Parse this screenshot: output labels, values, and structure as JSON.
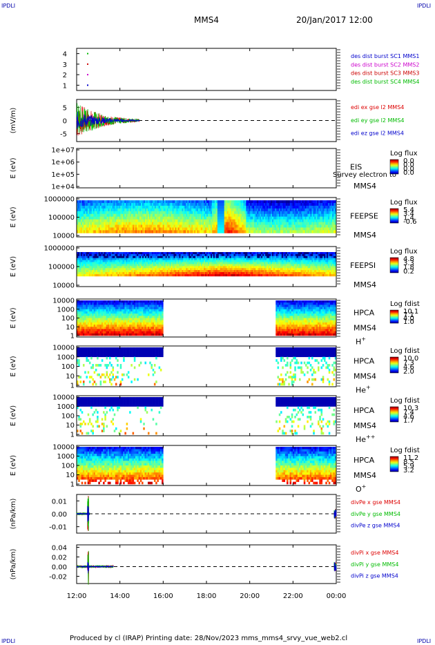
{
  "header": {
    "corner_tl": "IPDLI",
    "corner_tr": "IPDLI",
    "corner_bl": "IPDLI",
    "corner_br": "IPDLI",
    "mission": "MMS4",
    "datetime": "20/Jan/2017 12:00"
  },
  "footer": {
    "text": "Produced by cl (IRAP)   Printing date: 28/Nov/2023   mms_mms4_srvy_vue_web2.cl"
  },
  "chart_data": [
    {
      "type": "scatter",
      "id": "dist",
      "ylim": [
        0.5,
        4.5
      ],
      "yticks": [
        1,
        2,
        3,
        4
      ],
      "series": [
        {
          "name": "des dist burst SC1 MMS1",
          "color": "#0000cc",
          "y": 1
        },
        {
          "name": "des dist burst SC2 MMS2",
          "color": "#cc00cc",
          "y": 2
        },
        {
          "name": "des dist burst SC3 MMS3",
          "color": "#cc0000",
          "y": 3
        },
        {
          "name": "des dist burst SC4 MMS4",
          "color": "#00bb00",
          "y": 4
        }
      ]
    },
    {
      "type": "line",
      "id": "edi",
      "ylabel": "(mV/m)",
      "ylim": [
        -8,
        8
      ],
      "yticks": [
        5,
        0,
        -5
      ],
      "zero_line": true,
      "series": [
        {
          "name": "edi ex gse l2 MMS4",
          "color": "#dd0000"
        },
        {
          "name": "edi ey gse l2 MMS4",
          "color": "#00bb00"
        },
        {
          "name": "edi ez gse l2 MMS4",
          "color": "#0000cc"
        }
      ]
    },
    {
      "type": "heatmap",
      "id": "eis",
      "ylabel": "E (eV)",
      "yticks": [
        "1e+07",
        "1e+06",
        "1e+05",
        "1e+04"
      ],
      "instrument": "EIS",
      "sc": "MMS4",
      "overlay": "Survey electron to",
      "colorbar_title": "Log flux",
      "colorbar_ticks": [
        "0.0",
        "0.0",
        "0.0",
        "0.0"
      ]
    },
    {
      "type": "heatmap",
      "id": "feepse",
      "ylabel": "E (eV)",
      "yticks": [
        "1000000",
        "100000",
        "10000"
      ],
      "instrument": "FEEPSE",
      "sc": "MMS4",
      "colorbar_title": "Log flux",
      "colorbar_ticks": [
        "5.4",
        "3.4",
        "1.4",
        "-0.6"
      ]
    },
    {
      "type": "heatmap",
      "id": "feepsi",
      "ylabel": "E (eV)",
      "yticks": [
        "1000000",
        "100000",
        "10000"
      ],
      "instrument": "FEEPSI",
      "sc": "MMS4",
      "colorbar_title": "Log flux",
      "colorbar_ticks": [
        "4.8",
        "3.3",
        "1.8",
        "0.2"
      ]
    },
    {
      "type": "heatmap",
      "id": "hpca_h",
      "ylabel": "E (eV)",
      "yticks": [
        "10000",
        "1000",
        "100",
        "10",
        "1"
      ],
      "instrument": "HPCA",
      "sc": "MMS4",
      "species": "H",
      "species_sup": "+",
      "colorbar_title": "Log fdist",
      "colorbar_ticks": [
        "10.1",
        "7.1",
        "4.0",
        "1.0"
      ]
    },
    {
      "type": "heatmap",
      "id": "hpca_he",
      "ylabel": "E (eV)",
      "yticks": [
        "10000",
        "1000",
        "100",
        "10",
        "1"
      ],
      "instrument": "HPCA",
      "sc": "MMS4",
      "species": "He",
      "species_sup": "+",
      "colorbar_title": "Log fdist",
      "colorbar_ticks": [
        "10.0",
        "7.3",
        "4.6",
        "2.0"
      ]
    },
    {
      "type": "heatmap",
      "id": "hpca_hepp",
      "ylabel": "E (eV)",
      "yticks": [
        "10000",
        "1000",
        "100",
        "10",
        "1"
      ],
      "instrument": "HPCA",
      "sc": "MMS4",
      "species": "He",
      "species_sup": "++",
      "colorbar_title": "Log fdist",
      "colorbar_ticks": [
        "10.3",
        "7.4",
        "4.6",
        "1.7"
      ]
    },
    {
      "type": "heatmap",
      "id": "hpca_o",
      "ylabel": "E (eV)",
      "yticks": [
        "10000",
        "1000",
        "100",
        "10",
        "1"
      ],
      "instrument": "HPCA",
      "sc": "MMS4",
      "species": "O",
      "species_sup": "+",
      "colorbar_title": "Log fdist",
      "colorbar_ticks": [
        "11.2",
        "8.5",
        "5.9",
        "3.2"
      ]
    },
    {
      "type": "line",
      "id": "divpe",
      "ylabel": "(nPa/km)",
      "ylim": [
        -0.015,
        0.015
      ],
      "yticks": [
        "0.01",
        "0.00",
        "-0.01"
      ],
      "zero_line": true,
      "series": [
        {
          "name": "divPe x gse MMS4",
          "color": "#dd0000"
        },
        {
          "name": "divPe y gse MMS4",
          "color": "#00bb00"
        },
        {
          "name": "divPe z gse MMS4",
          "color": "#0000cc"
        }
      ]
    },
    {
      "type": "line",
      "id": "divpi",
      "ylabel": "(nPa/km)",
      "ylim": [
        -0.035,
        0.045
      ],
      "yticks": [
        "0.04",
        "0.02",
        "0.00",
        "-0.02"
      ],
      "zero_line": true,
      "series": [
        {
          "name": "divPi x gse MMS4",
          "color": "#dd0000"
        },
        {
          "name": "divPi y gse MMS4",
          "color": "#00bb00"
        },
        {
          "name": "divPi z gse MMS4",
          "color": "#0000cc"
        }
      ]
    }
  ],
  "xaxis": {
    "ticks": [
      "12:00",
      "14:00",
      "16:00",
      "18:00",
      "20:00",
      "22:00",
      "00:00"
    ]
  }
}
